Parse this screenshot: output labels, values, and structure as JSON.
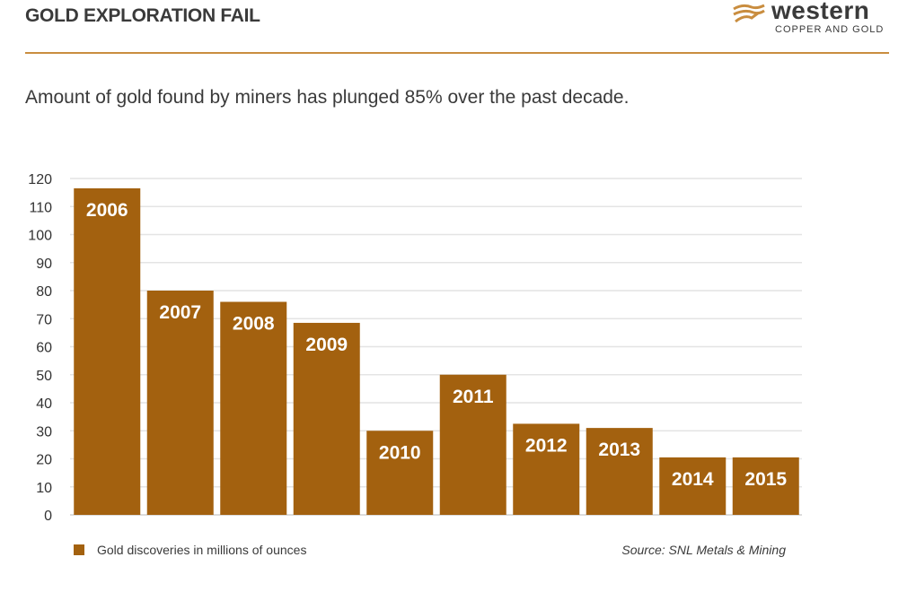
{
  "header": {
    "title": "GOLD EXPLORATION FAIL"
  },
  "logo": {
    "word": "western",
    "sub": "COPPER AND GOLD"
  },
  "subtitle": "Amount of gold found by miners has plunged 85% over the past decade.",
  "colors": {
    "bar": "#a3610f",
    "accent_rule": "#c98d3f",
    "grid": "#e4e4e4",
    "bar_label": "#ffffff"
  },
  "chart_data": {
    "type": "bar",
    "categories": [
      "2006",
      "2007",
      "2008",
      "2009",
      "2010",
      "2011",
      "2012",
      "2013",
      "2014",
      "2015"
    ],
    "series": [
      {
        "name": "Gold discoveries in millions of ounces",
        "values": [
          116.5,
          80,
          76,
          68.5,
          30,
          50,
          32.5,
          31,
          20.5,
          20.5
        ]
      }
    ],
    "yticks": [
      "0",
      "10",
      "20",
      "30",
      "40",
      "50",
      "60",
      "70",
      "80",
      "90",
      "100",
      "110",
      "120"
    ],
    "ylim": [
      0,
      120
    ],
    "grid": true,
    "legend": "bottom-left",
    "legend_label": "Gold discoveries in millions of ounces",
    "source": "Source: SNL Metals & Mining"
  }
}
